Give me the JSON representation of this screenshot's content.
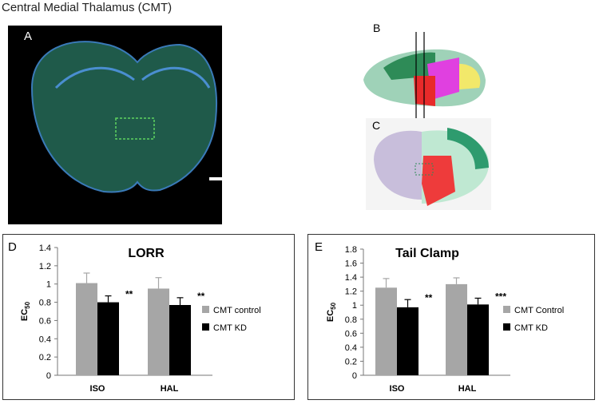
{
  "title": "Central Medial Thalamus (CMT)",
  "panel_labels": [
    "A",
    "B",
    "C",
    "D",
    "E"
  ],
  "chart_data": [
    {
      "type": "bar",
      "title": "LORR",
      "ylabel": "EC",
      "ylabel_sub": "50",
      "categories": [
        "ISO",
        "HAL"
      ],
      "series": [
        {
          "name": "CMT control",
          "color": "#a6a6a6",
          "values": [
            1.01,
            0.95
          ],
          "errors": [
            0.11,
            0.12
          ]
        },
        {
          "name": "CMT KD",
          "color": "#000000",
          "values": [
            0.8,
            0.77
          ],
          "errors": [
            0.07,
            0.08
          ],
          "annotations": [
            "**",
            "**"
          ]
        }
      ],
      "ylim": [
        0,
        1.4
      ],
      "yticks": [
        0,
        0.2,
        0.4,
        0.6,
        0.8,
        1,
        1.2,
        1.4
      ],
      "legend": "right"
    },
    {
      "type": "bar",
      "title": "Tail Clamp",
      "ylabel": "EC",
      "ylabel_sub": "50",
      "categories": [
        "ISO",
        "HAL"
      ],
      "series": [
        {
          "name": "CMT Control",
          "color": "#a6a6a6",
          "values": [
            1.25,
            1.3
          ],
          "errors": [
            0.13,
            0.09
          ]
        },
        {
          "name": "CMT KD",
          "color": "#000000",
          "values": [
            0.97,
            1.01
          ],
          "errors": [
            0.11,
            0.09
          ],
          "annotations": [
            "**",
            "***"
          ]
        }
      ],
      "ylim": [
        0,
        1.8
      ],
      "yticks": [
        0,
        0.2,
        0.4,
        0.6,
        0.8,
        1,
        1.2,
        1.4,
        1.6,
        1.8
      ],
      "legend": "right"
    }
  ]
}
